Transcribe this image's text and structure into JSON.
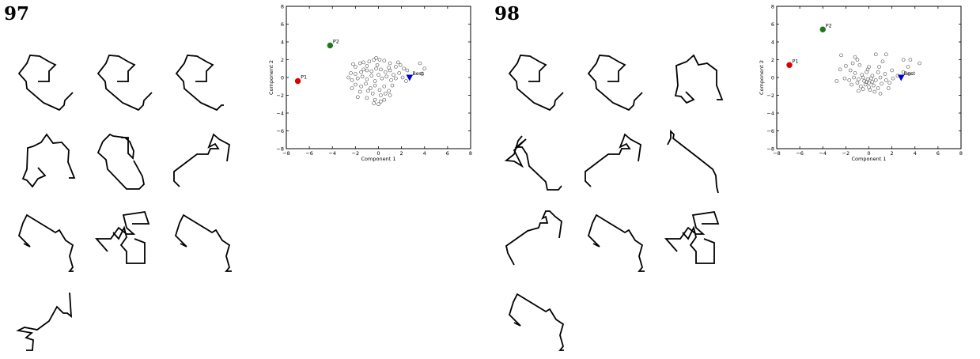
{
  "generations": [
    {
      "label": "97"
    },
    {
      "label": "98"
    }
  ],
  "chart_data": [
    {
      "type": "scatter",
      "xlabel": "Component 1",
      "ylabel": "Component 2",
      "xlim": [
        -8,
        8
      ],
      "ylim": [
        -8,
        8
      ],
      "xticks": [
        -8,
        -6,
        -4,
        -2,
        0,
        2,
        4,
        6,
        8
      ],
      "yticks": [
        -8,
        -6,
        -4,
        -2,
        0,
        2,
        4,
        6,
        8
      ],
      "grid": false,
      "highlights": [
        {
          "label": "P1",
          "x": -7.0,
          "y": -0.4,
          "color": "#dd0000",
          "marker": "circle"
        },
        {
          "label": "P2",
          "x": -4.2,
          "y": 3.6,
          "color": "#1a7a1a",
          "marker": "circle"
        },
        {
          "label": "Best",
          "x": 2.7,
          "y": 0.0,
          "color": "#0000cc",
          "marker": "triangle-down"
        }
      ],
      "points": [
        [
          -2.2,
          1.5
        ],
        [
          -2.0,
          1.2
        ],
        [
          -1.6,
          1.6
        ],
        [
          -1.3,
          1.7
        ],
        [
          -1.0,
          1.3
        ],
        [
          -0.8,
          1.8
        ],
        [
          -0.4,
          2.0
        ],
        [
          -0.2,
          2.2
        ],
        [
          0.1,
          2.0
        ],
        [
          0.5,
          1.9
        ],
        [
          1.0,
          1.6
        ],
        [
          1.7,
          1.7
        ],
        [
          1.5,
          1.2
        ],
        [
          2.2,
          1.0
        ],
        [
          2.5,
          0.8
        ],
        [
          3.6,
          1.6
        ],
        [
          4.0,
          1.0
        ],
        [
          3.8,
          0.4
        ],
        [
          -2.4,
          0.5
        ],
        [
          -2.0,
          0.4
        ],
        [
          -1.5,
          0.6
        ],
        [
          -1.0,
          0.8
        ],
        [
          -0.6,
          0.7
        ],
        [
          -0.2,
          1.0
        ],
        [
          0.2,
          0.9
        ],
        [
          0.6,
          0.6
        ],
        [
          1.0,
          0.8
        ],
        [
          1.3,
          0.3
        ],
        [
          1.8,
          0.5
        ],
        [
          2.1,
          0.0
        ],
        [
          -2.6,
          0.0
        ],
        [
          -2.3,
          -0.3
        ],
        [
          -1.8,
          -0.1
        ],
        [
          -1.4,
          0.1
        ],
        [
          -1.0,
          -0.2
        ],
        [
          -0.6,
          0.2
        ],
        [
          -0.3,
          -0.4
        ],
        [
          0.0,
          0.3
        ],
        [
          0.3,
          -0.1
        ],
        [
          0.7,
          0.1
        ],
        [
          1.1,
          -0.3
        ],
        [
          1.5,
          -0.1
        ],
        [
          -2.0,
          -0.8
        ],
        [
          -1.5,
          -1.0
        ],
        [
          -1.1,
          -0.7
        ],
        [
          -0.7,
          -1.2
        ],
        [
          -0.3,
          -0.9
        ],
        [
          0.1,
          -1.4
        ],
        [
          0.5,
          -1.0
        ],
        [
          0.9,
          -1.5
        ],
        [
          1.2,
          -0.9
        ],
        [
          -0.9,
          -1.5
        ],
        [
          -0.5,
          -1.8
        ],
        [
          0.2,
          -2.0
        ],
        [
          0.6,
          -1.8
        ],
        [
          1.0,
          -2.0
        ],
        [
          -1.8,
          -2.2
        ],
        [
          -1.0,
          -2.3
        ],
        [
          -0.3,
          -2.5
        ],
        [
          0.2,
          -2.7
        ],
        [
          0.0,
          -3.0
        ],
        [
          -0.4,
          -2.9
        ],
        [
          0.5,
          -2.5
        ],
        [
          -1.6,
          -1.6
        ],
        [
          -2.3,
          -1.2
        ],
        [
          -1.3,
          0.9
        ],
        [
          -0.1,
          1.4
        ],
        [
          0.9,
          1.1
        ],
        [
          1.9,
          1.4
        ],
        [
          2.4,
          -0.4
        ]
      ]
    },
    {
      "type": "scatter",
      "xlabel": "Component 1",
      "ylabel": "Component 2",
      "xlim": [
        -8,
        8
      ],
      "ylim": [
        -8,
        8
      ],
      "xticks": [
        -8,
        -6,
        -4,
        -2,
        0,
        2,
        4,
        6,
        8
      ],
      "yticks": [
        -8,
        -6,
        -4,
        -2,
        0,
        2,
        4,
        6,
        8
      ],
      "grid": false,
      "highlights": [
        {
          "label": "P1",
          "x": -6.9,
          "y": 1.4,
          "color": "#dd0000",
          "marker": "circle"
        },
        {
          "label": "P2",
          "x": -4.0,
          "y": 5.4,
          "color": "#1a7a1a",
          "marker": "circle"
        },
        {
          "label": "Best",
          "x": 2.8,
          "y": 0.0,
          "color": "#0000cc",
          "marker": "triangle-down"
        }
      ],
      "points": [
        [
          -2.4,
          2.5
        ],
        [
          -1.2,
          2.3
        ],
        [
          -1.0,
          2.0
        ],
        [
          0.6,
          2.6
        ],
        [
          1.5,
          2.6
        ],
        [
          -1.4,
          1.6
        ],
        [
          -0.8,
          1.4
        ],
        [
          0.0,
          1.2
        ],
        [
          3.0,
          2.0
        ],
        [
          3.6,
          2.0
        ],
        [
          4.4,
          1.6
        ],
        [
          3.4,
          1.2
        ],
        [
          -2.5,
          0.9
        ],
        [
          -2.0,
          1.3
        ],
        [
          -1.6,
          0.8
        ],
        [
          -1.2,
          0.5
        ],
        [
          -0.6,
          0.3
        ],
        [
          -0.2,
          0.6
        ],
        [
          0.3,
          0.2
        ],
        [
          0.8,
          0.6
        ],
        [
          1.4,
          0.4
        ],
        [
          2.0,
          0.8
        ],
        [
          3.0,
          0.6
        ],
        [
          3.5,
          0.4
        ],
        [
          -2.1,
          -0.1
        ],
        [
          -1.7,
          -0.3
        ],
        [
          -1.3,
          0.0
        ],
        [
          -0.9,
          -0.2
        ],
        [
          -0.5,
          0.0
        ],
        [
          -0.1,
          -0.2
        ],
        [
          0.2,
          -0.1
        ],
        [
          0.6,
          -0.3
        ],
        [
          1.0,
          0.0
        ],
        [
          1.5,
          -0.3
        ],
        [
          2.1,
          -0.1
        ],
        [
          -2.8,
          -0.4
        ],
        [
          -1.5,
          -0.8
        ],
        [
          -1.0,
          -0.6
        ],
        [
          -0.7,
          -1.0
        ],
        [
          -0.3,
          -0.8
        ],
        [
          0.0,
          -1.1
        ],
        [
          0.4,
          -0.9
        ],
        [
          0.8,
          -1.2
        ],
        [
          1.1,
          -0.7
        ],
        [
          1.8,
          -0.6
        ],
        [
          1.7,
          -1.2
        ],
        [
          -0.9,
          -1.5
        ],
        [
          -0.5,
          -1.3
        ],
        [
          0.1,
          -1.4
        ],
        [
          0.5,
          -1.6
        ],
        [
          1.0,
          -1.8
        ],
        [
          -0.2,
          -0.5
        ],
        [
          0.0,
          -0.6
        ],
        [
          -0.4,
          -0.4
        ],
        [
          0.3,
          -0.5
        ],
        [
          1.2,
          1.8
        ],
        [
          -0.1,
          0.9
        ],
        [
          0.9,
          1.2
        ],
        [
          2.5,
          0.2
        ]
      ]
    }
  ]
}
